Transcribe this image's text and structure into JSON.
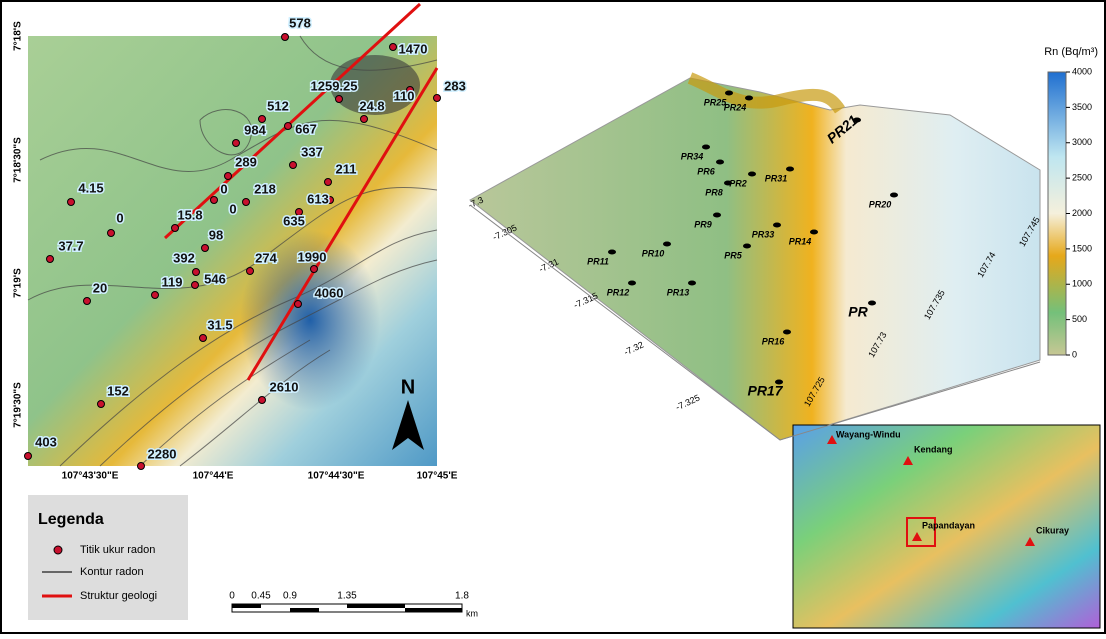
{
  "map": {
    "lat_labels": [
      "7°18'S",
      "7°18'30\"S",
      "7°19'S",
      "7°19'30\"S"
    ],
    "lon_labels": [
      "107°43'30\"E",
      "107°44'E",
      "107°44'30\"E",
      "107°45'E"
    ],
    "points": [
      "578",
      "1470",
      "1259.25",
      "283",
      "512",
      "24.8",
      "110",
      "984",
      "667",
      "337",
      "289",
      "211",
      "4.15",
      "0",
      "218",
      "0",
      "0",
      "15.8",
      "613",
      "635",
      "98",
      "37.7",
      "392",
      "274",
      "1990",
      "119",
      "546",
      "20",
      "4060",
      "31.5",
      "152",
      "2610",
      "403",
      "2280"
    ],
    "north": "N"
  },
  "legend": {
    "title": "Legenda",
    "items": [
      "Titik ukur radon",
      "Kontur radon",
      "Struktur geologi"
    ]
  },
  "scale_bar": {
    "ticks": [
      "0",
      "0.45",
      "0.9",
      "1.35",
      "1.8"
    ],
    "unit": "km"
  },
  "surface": {
    "stations": [
      "PR25",
      "PR24",
      "PR21",
      "PR20",
      "PR34",
      "PR6",
      "PR2",
      "PR31",
      "PR8",
      "PR9",
      "PR33",
      "PR14",
      "PR11",
      "PR10",
      "PR5",
      "PR12",
      "PR13",
      "PR16",
      "PR17",
      "PR"
    ],
    "lat_ticks": [
      "-7.3",
      "-7.305",
      "-7.31",
      "-7.315",
      "-7.32",
      "-7.325"
    ],
    "lon_ticks": [
      "107.725",
      "107.73",
      "107.735",
      "107.74",
      "107.745"
    ]
  },
  "colorbar": {
    "title": "Rn (Bq/m³)",
    "ticks": [
      "4000",
      "3500",
      "3000",
      "2500",
      "2000",
      "1500",
      "1000",
      "500",
      "0"
    ]
  },
  "inset": {
    "labels": [
      "Wayang-Windu",
      "Kendang",
      "Papandayan",
      "Cikuray"
    ]
  }
}
